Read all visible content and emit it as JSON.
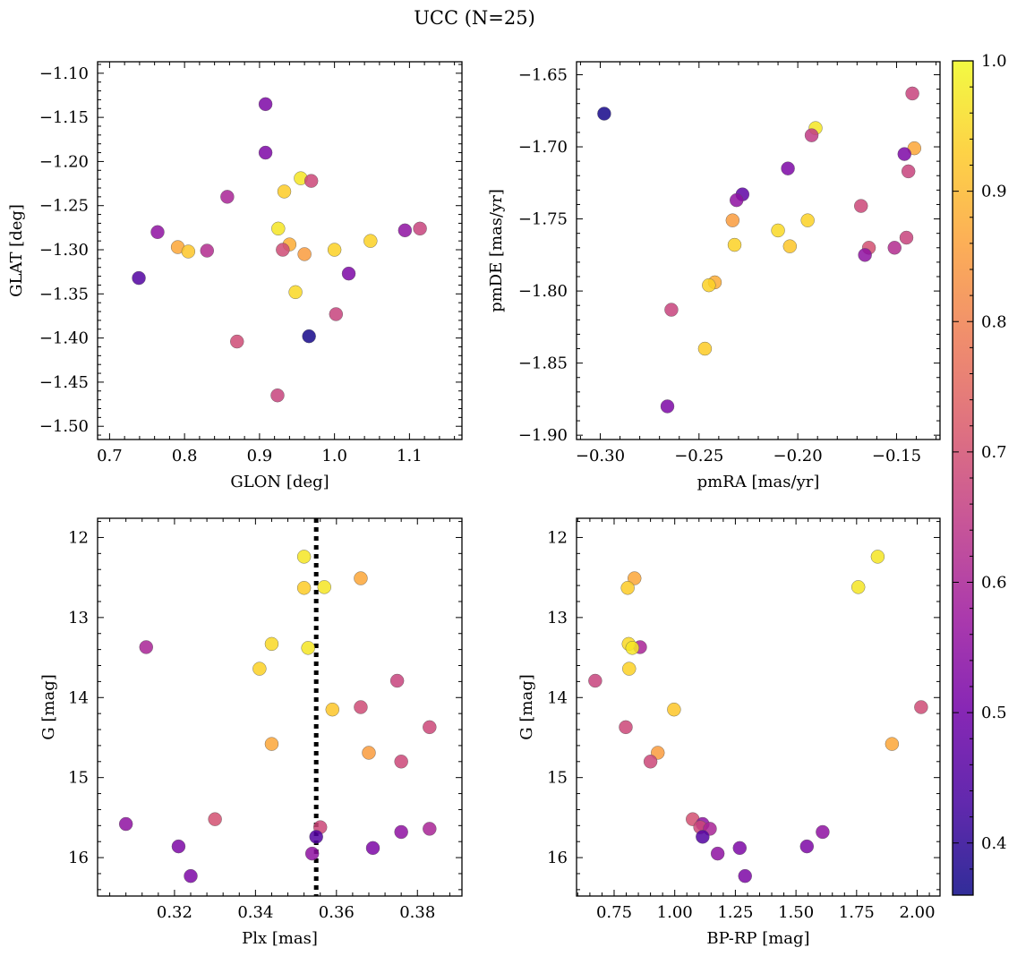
{
  "figure": {
    "title": "UCC (N=25)"
  },
  "colorbar": {
    "range": [
      0.36,
      1.0
    ],
    "ticks": [
      0.4,
      0.5,
      0.6,
      0.7,
      0.8,
      0.9,
      1.0
    ],
    "tick_labels": [
      "0.4",
      "0.5",
      "0.6",
      "0.7",
      "0.8",
      "0.9",
      "1.0"
    ],
    "colormap": "plasma",
    "colormap_stops": [
      "#0d0887",
      "#46039f",
      "#7201a8",
      "#9c179e",
      "#bd3786",
      "#d8576b",
      "#ed7953",
      "#fb9f3a",
      "#fdca26",
      "#f0f921"
    ]
  },
  "chart_data": [
    {
      "type": "scatter",
      "title": "",
      "xlabel": "GLON [deg]",
      "ylabel": "GLAT [deg]",
      "xlim": [
        0.684,
        1.17
      ],
      "ylim": [
        -1.515,
        -1.087
      ],
      "xticks": [
        0.7,
        0.8,
        0.9,
        1.0,
        1.1
      ],
      "xtick_labels": [
        "0.7",
        "0.8",
        "0.9",
        "1.0",
        "1.1"
      ],
      "yticks": [
        -1.5,
        -1.45,
        -1.4,
        -1.35,
        -1.3,
        -1.25,
        -1.2,
        -1.15,
        -1.1
      ],
      "ytick_labels": [
        "−1.50",
        "−1.45",
        "−1.40",
        "−1.35",
        "−1.30",
        "−1.25",
        "−1.20",
        "−1.15",
        "−1.10"
      ],
      "invert_y": false,
      "points": [
        {
          "x": 0.908,
          "y": -1.135,
          "c": 0.52
        },
        {
          "x": 0.908,
          "y": -1.19,
          "c": 0.52
        },
        {
          "x": 0.955,
          "y": -1.219,
          "c": 0.97
        },
        {
          "x": 0.969,
          "y": -1.222,
          "c": 0.68
        },
        {
          "x": 0.933,
          "y": -1.234,
          "c": 0.93
        },
        {
          "x": 0.857,
          "y": -1.24,
          "c": 0.6
        },
        {
          "x": 0.925,
          "y": -1.276,
          "c": 0.97
        },
        {
          "x": 1.114,
          "y": -1.276,
          "c": 0.67
        },
        {
          "x": 0.764,
          "y": -1.28,
          "c": 0.55
        },
        {
          "x": 1.094,
          "y": -1.278,
          "c": 0.55
        },
        {
          "x": 1.048,
          "y": -1.29,
          "c": 0.94
        },
        {
          "x": 0.94,
          "y": -1.294,
          "c": 0.88
        },
        {
          "x": 0.791,
          "y": -1.297,
          "c": 0.87
        },
        {
          "x": 0.931,
          "y": -1.3,
          "c": 0.69
        },
        {
          "x": 1.0,
          "y": -1.3,
          "c": 0.94
        },
        {
          "x": 0.83,
          "y": -1.301,
          "c": 0.62
        },
        {
          "x": 0.805,
          "y": -1.302,
          "c": 0.92
        },
        {
          "x": 0.96,
          "y": -1.305,
          "c": 0.85
        },
        {
          "x": 1.019,
          "y": -1.327,
          "c": 0.52
        },
        {
          "x": 0.739,
          "y": -1.332,
          "c": 0.45
        },
        {
          "x": 0.948,
          "y": -1.348,
          "c": 0.95
        },
        {
          "x": 1.002,
          "y": -1.373,
          "c": 0.67
        },
        {
          "x": 0.966,
          "y": -1.398,
          "c": 0.37
        },
        {
          "x": 0.87,
          "y": -1.404,
          "c": 0.69
        },
        {
          "x": 0.924,
          "y": -1.465,
          "c": 0.67
        }
      ]
    },
    {
      "type": "scatter",
      "title": "",
      "xlabel": "pmRA [mas/yr]",
      "ylabel": "pmDE [mas/yr]",
      "xlim": [
        -0.312,
        -0.128
      ],
      "ylim": [
        -1.903,
        -1.641
      ],
      "xticks": [
        -0.3,
        -0.25,
        -0.2,
        -0.15
      ],
      "xtick_labels": [
        "−0.30",
        "−0.25",
        "−0.20",
        "−0.15"
      ],
      "yticks": [
        -1.9,
        -1.85,
        -1.8,
        -1.75,
        -1.7,
        -1.65
      ],
      "ytick_labels": [
        "−1.90",
        "−1.85",
        "−1.80",
        "−1.75",
        "−1.70",
        "−1.65"
      ],
      "invert_y": false,
      "points": [
        {
          "x": -0.142,
          "y": -1.663,
          "c": 0.67
        },
        {
          "x": -0.298,
          "y": -1.677,
          "c": 0.37
        },
        {
          "x": -0.191,
          "y": -1.687,
          "c": 0.97
        },
        {
          "x": -0.193,
          "y": -1.692,
          "c": 0.65
        },
        {
          "x": -0.141,
          "y": -1.701,
          "c": 0.87
        },
        {
          "x": -0.146,
          "y": -1.705,
          "c": 0.52
        },
        {
          "x": -0.205,
          "y": -1.715,
          "c": 0.52
        },
        {
          "x": -0.144,
          "y": -1.717,
          "c": 0.67
        },
        {
          "x": -0.228,
          "y": -1.733,
          "c": 0.47
        },
        {
          "x": -0.231,
          "y": -1.737,
          "c": 0.55
        },
        {
          "x": -0.168,
          "y": -1.741,
          "c": 0.68
        },
        {
          "x": -0.233,
          "y": -1.751,
          "c": 0.85
        },
        {
          "x": -0.195,
          "y": -1.751,
          "c": 0.94
        },
        {
          "x": -0.21,
          "y": -1.758,
          "c": 0.95
        },
        {
          "x": -0.145,
          "y": -1.763,
          "c": 0.67
        },
        {
          "x": -0.232,
          "y": -1.768,
          "c": 0.94
        },
        {
          "x": -0.204,
          "y": -1.769,
          "c": 0.92
        },
        {
          "x": -0.164,
          "y": -1.77,
          "c": 0.7
        },
        {
          "x": -0.151,
          "y": -1.77,
          "c": 0.62
        },
        {
          "x": -0.166,
          "y": -1.775,
          "c": 0.55
        },
        {
          "x": -0.242,
          "y": -1.794,
          "c": 0.88
        },
        {
          "x": -0.245,
          "y": -1.796,
          "c": 0.94
        },
        {
          "x": -0.264,
          "y": -1.813,
          "c": 0.67
        },
        {
          "x": -0.247,
          "y": -1.84,
          "c": 0.93
        },
        {
          "x": -0.266,
          "y": -1.88,
          "c": 0.52
        }
      ]
    },
    {
      "type": "scatter",
      "title": "",
      "xlabel": "Plx [mas]",
      "ylabel": "G [mag]",
      "xlim": [
        0.301,
        0.391
      ],
      "ylim": [
        16.48,
        11.76
      ],
      "xticks": [
        0.32,
        0.34,
        0.36,
        0.38
      ],
      "xtick_labels": [
        "0.32",
        "0.34",
        "0.36",
        "0.38"
      ],
      "yticks": [
        12,
        13,
        14,
        15,
        16
      ],
      "ytick_labels": [
        "12",
        "13",
        "14",
        "15",
        "16"
      ],
      "invert_y": true,
      "vline": {
        "x": 0.355,
        "style": "dotted"
      },
      "points": [
        {
          "x": 0.352,
          "y": 12.24,
          "c": 0.97
        },
        {
          "x": 0.366,
          "y": 12.51,
          "c": 0.87
        },
        {
          "x": 0.352,
          "y": 12.63,
          "c": 0.93
        },
        {
          "x": 0.357,
          "y": 12.62,
          "c": 0.97
        },
        {
          "x": 0.313,
          "y": 13.37,
          "c": 0.6
        },
        {
          "x": 0.344,
          "y": 13.33,
          "c": 0.95
        },
        {
          "x": 0.353,
          "y": 13.38,
          "c": 0.97
        },
        {
          "x": 0.341,
          "y": 13.64,
          "c": 0.94
        },
        {
          "x": 0.375,
          "y": 13.79,
          "c": 0.67
        },
        {
          "x": 0.383,
          "y": 14.37,
          "c": 0.68
        },
        {
          "x": 0.366,
          "y": 14.12,
          "c": 0.69
        },
        {
          "x": 0.359,
          "y": 14.15,
          "c": 0.92
        },
        {
          "x": 0.344,
          "y": 14.58,
          "c": 0.87
        },
        {
          "x": 0.368,
          "y": 14.69,
          "c": 0.85
        },
        {
          "x": 0.376,
          "y": 14.8,
          "c": 0.68
        },
        {
          "x": 0.33,
          "y": 15.52,
          "c": 0.7
        },
        {
          "x": 0.308,
          "y": 15.58,
          "c": 0.55
        },
        {
          "x": 0.356,
          "y": 15.62,
          "c": 0.68
        },
        {
          "x": 0.383,
          "y": 15.64,
          "c": 0.6
        },
        {
          "x": 0.376,
          "y": 15.68,
          "c": 0.55
        },
        {
          "x": 0.355,
          "y": 15.74,
          "c": 0.45
        },
        {
          "x": 0.321,
          "y": 15.86,
          "c": 0.52
        },
        {
          "x": 0.369,
          "y": 15.88,
          "c": 0.52
        },
        {
          "x": 0.354,
          "y": 15.95,
          "c": 0.55
        },
        {
          "x": 0.324,
          "y": 16.23,
          "c": 0.52
        }
      ]
    },
    {
      "type": "scatter",
      "title": "",
      "xlabel": "BP-RP [mag]",
      "ylabel": "G [mag]",
      "xlim": [
        0.595,
        2.094
      ],
      "ylim": [
        16.48,
        11.76
      ],
      "xticks": [
        0.75,
        1.0,
        1.25,
        1.5,
        1.75,
        2.0
      ],
      "xtick_labels": [
        "0.75",
        "1.00",
        "1.25",
        "1.50",
        "1.75",
        "2.00"
      ],
      "yticks": [
        12,
        13,
        14,
        15,
        16
      ],
      "ytick_labels": [
        "12",
        "13",
        "14",
        "15",
        "16"
      ],
      "invert_y": true,
      "points": [
        {
          "x": 1.837,
          "y": 12.24,
          "c": 0.97
        },
        {
          "x": 0.834,
          "y": 12.51,
          "c": 0.87
        },
        {
          "x": 0.806,
          "y": 12.63,
          "c": 0.93
        },
        {
          "x": 1.757,
          "y": 12.62,
          "c": 0.97
        },
        {
          "x": 0.857,
          "y": 13.37,
          "c": 0.6
        },
        {
          "x": 0.81,
          "y": 13.33,
          "c": 0.95
        },
        {
          "x": 0.825,
          "y": 13.38,
          "c": 0.97
        },
        {
          "x": 0.812,
          "y": 13.64,
          "c": 0.94
        },
        {
          "x": 0.672,
          "y": 13.79,
          "c": 0.67
        },
        {
          "x": 0.798,
          "y": 14.37,
          "c": 0.68
        },
        {
          "x": 2.016,
          "y": 14.12,
          "c": 0.69
        },
        {
          "x": 0.997,
          "y": 14.15,
          "c": 0.92
        },
        {
          "x": 1.896,
          "y": 14.58,
          "c": 0.87
        },
        {
          "x": 0.93,
          "y": 14.69,
          "c": 0.85
        },
        {
          "x": 0.9,
          "y": 14.8,
          "c": 0.68
        },
        {
          "x": 1.074,
          "y": 15.52,
          "c": 0.7
        },
        {
          "x": 1.115,
          "y": 15.58,
          "c": 0.55
        },
        {
          "x": 1.105,
          "y": 15.62,
          "c": 0.68
        },
        {
          "x": 1.145,
          "y": 15.64,
          "c": 0.6
        },
        {
          "x": 1.61,
          "y": 15.68,
          "c": 0.55
        },
        {
          "x": 1.115,
          "y": 15.74,
          "c": 0.45
        },
        {
          "x": 1.545,
          "y": 15.86,
          "c": 0.52
        },
        {
          "x": 1.268,
          "y": 15.88,
          "c": 0.52
        },
        {
          "x": 1.177,
          "y": 15.95,
          "c": 0.55
        },
        {
          "x": 1.29,
          "y": 16.23,
          "c": 0.52
        }
      ]
    }
  ]
}
